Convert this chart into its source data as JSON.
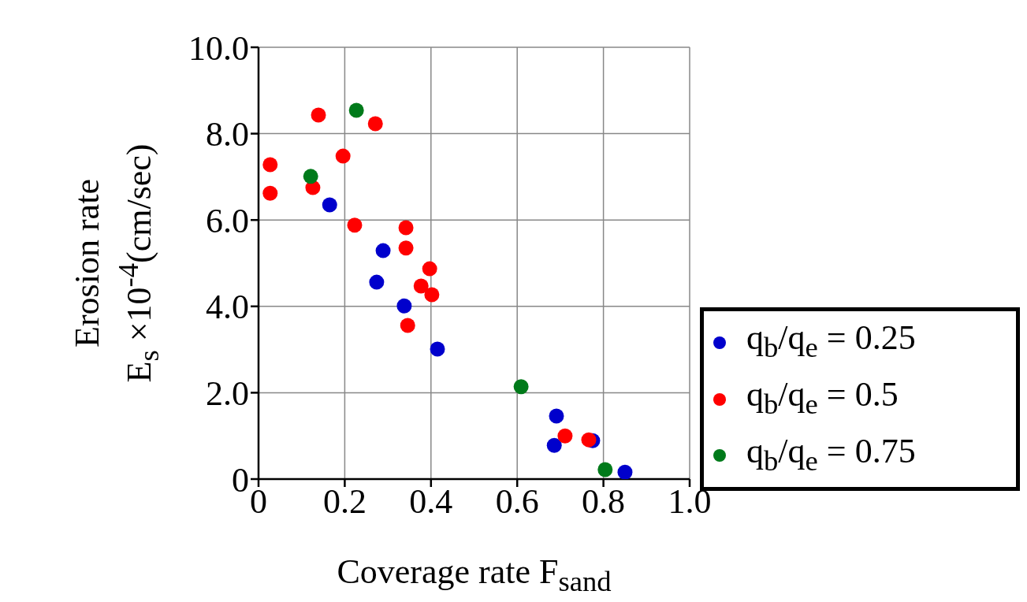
{
  "chart_data": {
    "type": "scatter",
    "xlabel": "Coverage rate F$_{sand}$",
    "ylabel": "Erosion rate\nE$_{s}$ ×10$^{-4}$(cm/sec)",
    "xlim": [
      0,
      1
    ],
    "xticks": [
      0,
      0.2,
      0.4,
      0.6,
      0.8,
      {
        "value": 1,
        "label": "1.0"
      }
    ],
    "ylim": [
      0,
      10
    ],
    "yticks": [
      0,
      {
        "value": 2,
        "label": "2.0"
      },
      {
        "value": 4,
        "label": "4.0"
      },
      {
        "value": 6,
        "label": "6.0"
      },
      {
        "value": 8,
        "label": "8.0"
      },
      {
        "value": 10,
        "label": "10.0"
      }
    ],
    "grid": true,
    "legend": "right",
    "marker": "circle",
    "series": [
      {
        "name": "q$_{b}$/q$_{e}$ = 0.25",
        "color": "#0000cc",
        "x": [
          0.165,
          0.289,
          0.274,
          0.338,
          0.415,
          0.691,
          0.686,
          0.775,
          0.85
        ],
        "values": [
          6.35,
          5.29,
          4.56,
          4.01,
          3.01,
          1.46,
          0.78,
          0.89,
          0.16
        ]
      },
      {
        "name": "q$_{b}$/q$_{e}$ = 0.5",
        "color": "#ff0000",
        "x": [
          0.027,
          0.027,
          0.139,
          0.126,
          0.196,
          0.271,
          0.223,
          0.342,
          0.342,
          0.397,
          0.377,
          0.402,
          0.346,
          0.711,
          0.766
        ],
        "values": [
          7.28,
          6.62,
          8.43,
          6.75,
          7.48,
          8.23,
          5.88,
          5.82,
          5.35,
          4.87,
          4.47,
          4.27,
          3.56,
          1.0,
          0.91
        ]
      },
      {
        "name": "q$_{b}$/q$_{e}$ = 0.75",
        "color": "#007a1a",
        "x": [
          0.227,
          0.121,
          0.609,
          0.804
        ],
        "values": [
          8.54,
          7.01,
          2.14,
          0.22
        ]
      }
    ]
  }
}
